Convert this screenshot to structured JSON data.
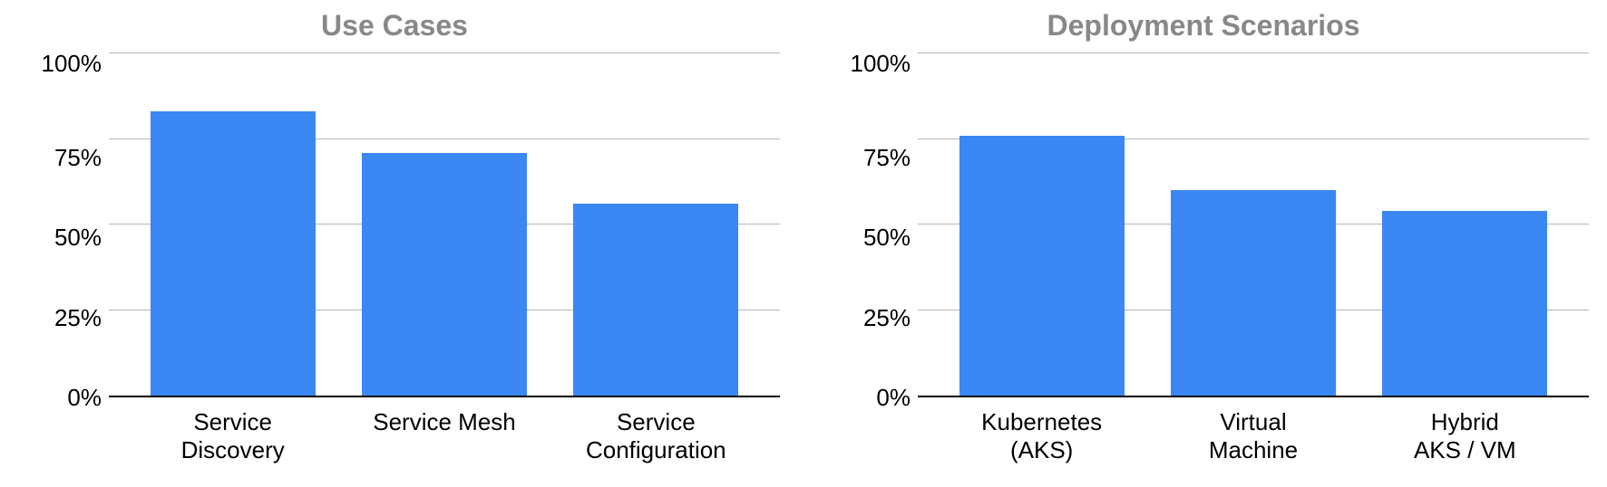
{
  "background_color": "#ffffff",
  "bar_color": "#3b87f3",
  "grid_color": "#b5b5b5",
  "axis_color": "#000000",
  "title_color": "#888888",
  "label_color": "#000000",
  "title_fontsize": 32,
  "label_fontsize": 26,
  "charts": {
    "use_cases": {
      "type": "bar",
      "title": "Use Cases",
      "ylim": [
        0,
        100
      ],
      "ytick_step": 25,
      "yticks": [
        "100%",
        "75%",
        "50%",
        "25%",
        "0%"
      ],
      "bar_width_pct": 78,
      "categories": [
        {
          "label": "Service\nDiscovery",
          "value": 83
        },
        {
          "label": "Service Mesh",
          "value": 71
        },
        {
          "label": "Service\nConfiguration",
          "value": 56
        }
      ]
    },
    "deployment_scenarios": {
      "type": "bar",
      "title": "Deployment Scenarios",
      "ylim": [
        0,
        100
      ],
      "ytick_step": 25,
      "yticks": [
        "100%",
        "75%",
        "50%",
        "25%",
        "0%"
      ],
      "bar_width_pct": 78,
      "categories": [
        {
          "label": "Kubernetes\n(AKS)",
          "value": 76
        },
        {
          "label": "Virtual\nMachine",
          "value": 60
        },
        {
          "label": "Hybrid\nAKS / VM",
          "value": 54
        }
      ]
    }
  }
}
